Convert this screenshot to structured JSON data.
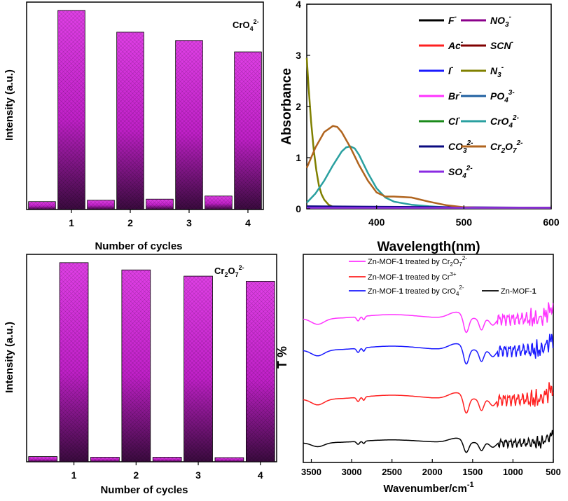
{
  "chart_data": [
    {
      "type": "bar",
      "panel": "top-left",
      "annotation": {
        "base": "CrO",
        "sub": "4",
        "sup": "2-"
      },
      "xlabel": "Number of cycles",
      "ylabel": "Intensity (a.u.)",
      "ylim": [
        0,
        100
      ],
      "categories": [
        "",
        "1",
        "",
        "2",
        "",
        "3",
        "",
        "4"
      ],
      "values": [
        3.8,
        96,
        4.5,
        85.5,
        5,
        81.5,
        6.5,
        76
      ],
      "bar_colors": [
        "#e040e6",
        "#c020c8"
      ]
    },
    {
      "type": "line",
      "panel": "top-right",
      "xlabel": "Wavelength(nm)",
      "ylabel": "Absorbance",
      "xlim": [
        320,
        600
      ],
      "ylim": [
        0,
        4
      ],
      "xticks": [
        400,
        500,
        600
      ],
      "yticks": [
        0,
        1,
        2,
        3,
        4
      ],
      "legend_position": "top-right",
      "series": [
        {
          "name": "F",
          "sup": "-",
          "color": "#000000",
          "x": [
            320,
            600
          ],
          "y": [
            0.02,
            0.02
          ]
        },
        {
          "name": "NO",
          "sub": "3",
          "sup": "-",
          "color": "#8B008B",
          "x": [
            320,
            600
          ],
          "y": [
            0.02,
            0.02
          ]
        },
        {
          "name": "Ac",
          "sup": "-",
          "color": "#ff2020",
          "x": [
            320,
            600
          ],
          "y": [
            0.02,
            0.02
          ]
        },
        {
          "name": "SCN",
          "sup": "-",
          "color": "#800000",
          "x": [
            320,
            600
          ],
          "y": [
            0.02,
            0.02
          ]
        },
        {
          "name": "I",
          "sup": "-",
          "color": "#1a1aff",
          "x": [
            320,
            600
          ],
          "y": [
            0.03,
            0.02
          ]
        },
        {
          "name": "N",
          "sub": "3",
          "sup": "-",
          "color": "#808000",
          "x": [
            320,
            322,
            325,
            328,
            331,
            334,
            337,
            340,
            345,
            350,
            360,
            600
          ],
          "y": [
            2.95,
            2.4,
            1.7,
            1.15,
            0.75,
            0.45,
            0.28,
            0.18,
            0.08,
            0.04,
            0.02,
            0.02
          ]
        },
        {
          "name": "Br",
          "sup": "-",
          "color": "#ff33ff",
          "x": [
            320,
            600
          ],
          "y": [
            0.02,
            0.02
          ]
        },
        {
          "name": "PO",
          "sub": "4",
          "sup": "3-",
          "color": "#1f5fa0",
          "x": [
            320,
            600
          ],
          "y": [
            0.03,
            0.02
          ]
        },
        {
          "name": "Cl",
          "sup": "-",
          "color": "#1a8a1a",
          "x": [
            320,
            600
          ],
          "y": [
            0.02,
            0.02
          ]
        },
        {
          "name": "CrO",
          "sub": "4",
          "sup": "2-",
          "color": "#2aa0a0",
          "x": [
            320,
            330,
            340,
            350,
            360,
            365,
            370,
            375,
            380,
            390,
            400,
            410,
            420,
            440,
            460,
            480,
            500,
            600
          ],
          "y": [
            0.12,
            0.3,
            0.55,
            0.85,
            1.12,
            1.2,
            1.22,
            1.18,
            1.05,
            0.7,
            0.4,
            0.22,
            0.14,
            0.08,
            0.05,
            0.03,
            0.02,
            0.02
          ]
        },
        {
          "name": "CO",
          "sub": "3",
          "sup": "2-",
          "color": "#0a0a80",
          "x": [
            320,
            600
          ],
          "y": [
            0.05,
            0.02
          ]
        },
        {
          "name": "Cr",
          "sub": "2",
          "mid": "O",
          "sub2": "7",
          "sup": "2-",
          "color": "#b0641e",
          "x": [
            320,
            330,
            340,
            350,
            355,
            360,
            370,
            380,
            390,
            400,
            410,
            420,
            440,
            460,
            480,
            500,
            520,
            600
          ],
          "y": [
            0.8,
            1.2,
            1.5,
            1.62,
            1.6,
            1.5,
            1.2,
            0.85,
            0.55,
            0.32,
            0.24,
            0.24,
            0.22,
            0.14,
            0.07,
            0.03,
            0.02,
            0.02
          ]
        },
        {
          "name": "SO",
          "sub": "4",
          "sup": "2-",
          "color": "#8a2be2",
          "x": [
            320,
            600
          ],
          "y": [
            0.02,
            0.02
          ]
        }
      ]
    },
    {
      "type": "bar",
      "panel": "bottom-left",
      "annotation": {
        "base": "Cr",
        "sub": "2",
        "mid": "O",
        "sub2": "7",
        "sup": "2-"
      },
      "xlabel": "Number of cycles",
      "ylabel": "Intensity (a.u.)",
      "ylim": [
        0,
        100
      ],
      "categories": [
        "",
        "1",
        "",
        "2",
        "",
        "3",
        "",
        "4"
      ],
      "values": [
        2.5,
        96,
        2.2,
        92.5,
        2.2,
        89.5,
        2.0,
        87
      ],
      "bar_colors": [
        "#e040e6",
        "#c020c8"
      ]
    },
    {
      "type": "line",
      "panel": "bottom-right",
      "xlabel": "Wavenumber/cm",
      "xlabel_sup": "-1",
      "ylabel": "T %",
      "xlim": [
        3600,
        500
      ],
      "xticks": [
        3500,
        3000,
        2500,
        2000,
        1500,
        1000,
        500
      ],
      "legend_position": "top-left",
      "series": [
        {
          "name_pre": "Zn-MOF-",
          "name_bold": "1",
          "name_post": " treated by Cr",
          "sub": "2",
          "mid": "O",
          "sub2": "7",
          "sup": "2-",
          "color": "#ff33ff",
          "offset": 3
        },
        {
          "name_pre": "Zn-MOF-",
          "name_bold": "1",
          "name_post": " treated by Cr",
          "sup": "3+",
          "color": "#ff2020",
          "offset": 1
        },
        {
          "name_pre": "Zn-MOF-",
          "name_bold": "1",
          "name_post": " treated by CrO",
          "sub": "4",
          "sup": "2-",
          "color": "#1a1aff",
          "offset": 2
        },
        {
          "name_pre": "Zn-MOF-",
          "name_bold": "1",
          "name_post": "",
          "color": "#000000",
          "offset": 0
        }
      ]
    }
  ]
}
